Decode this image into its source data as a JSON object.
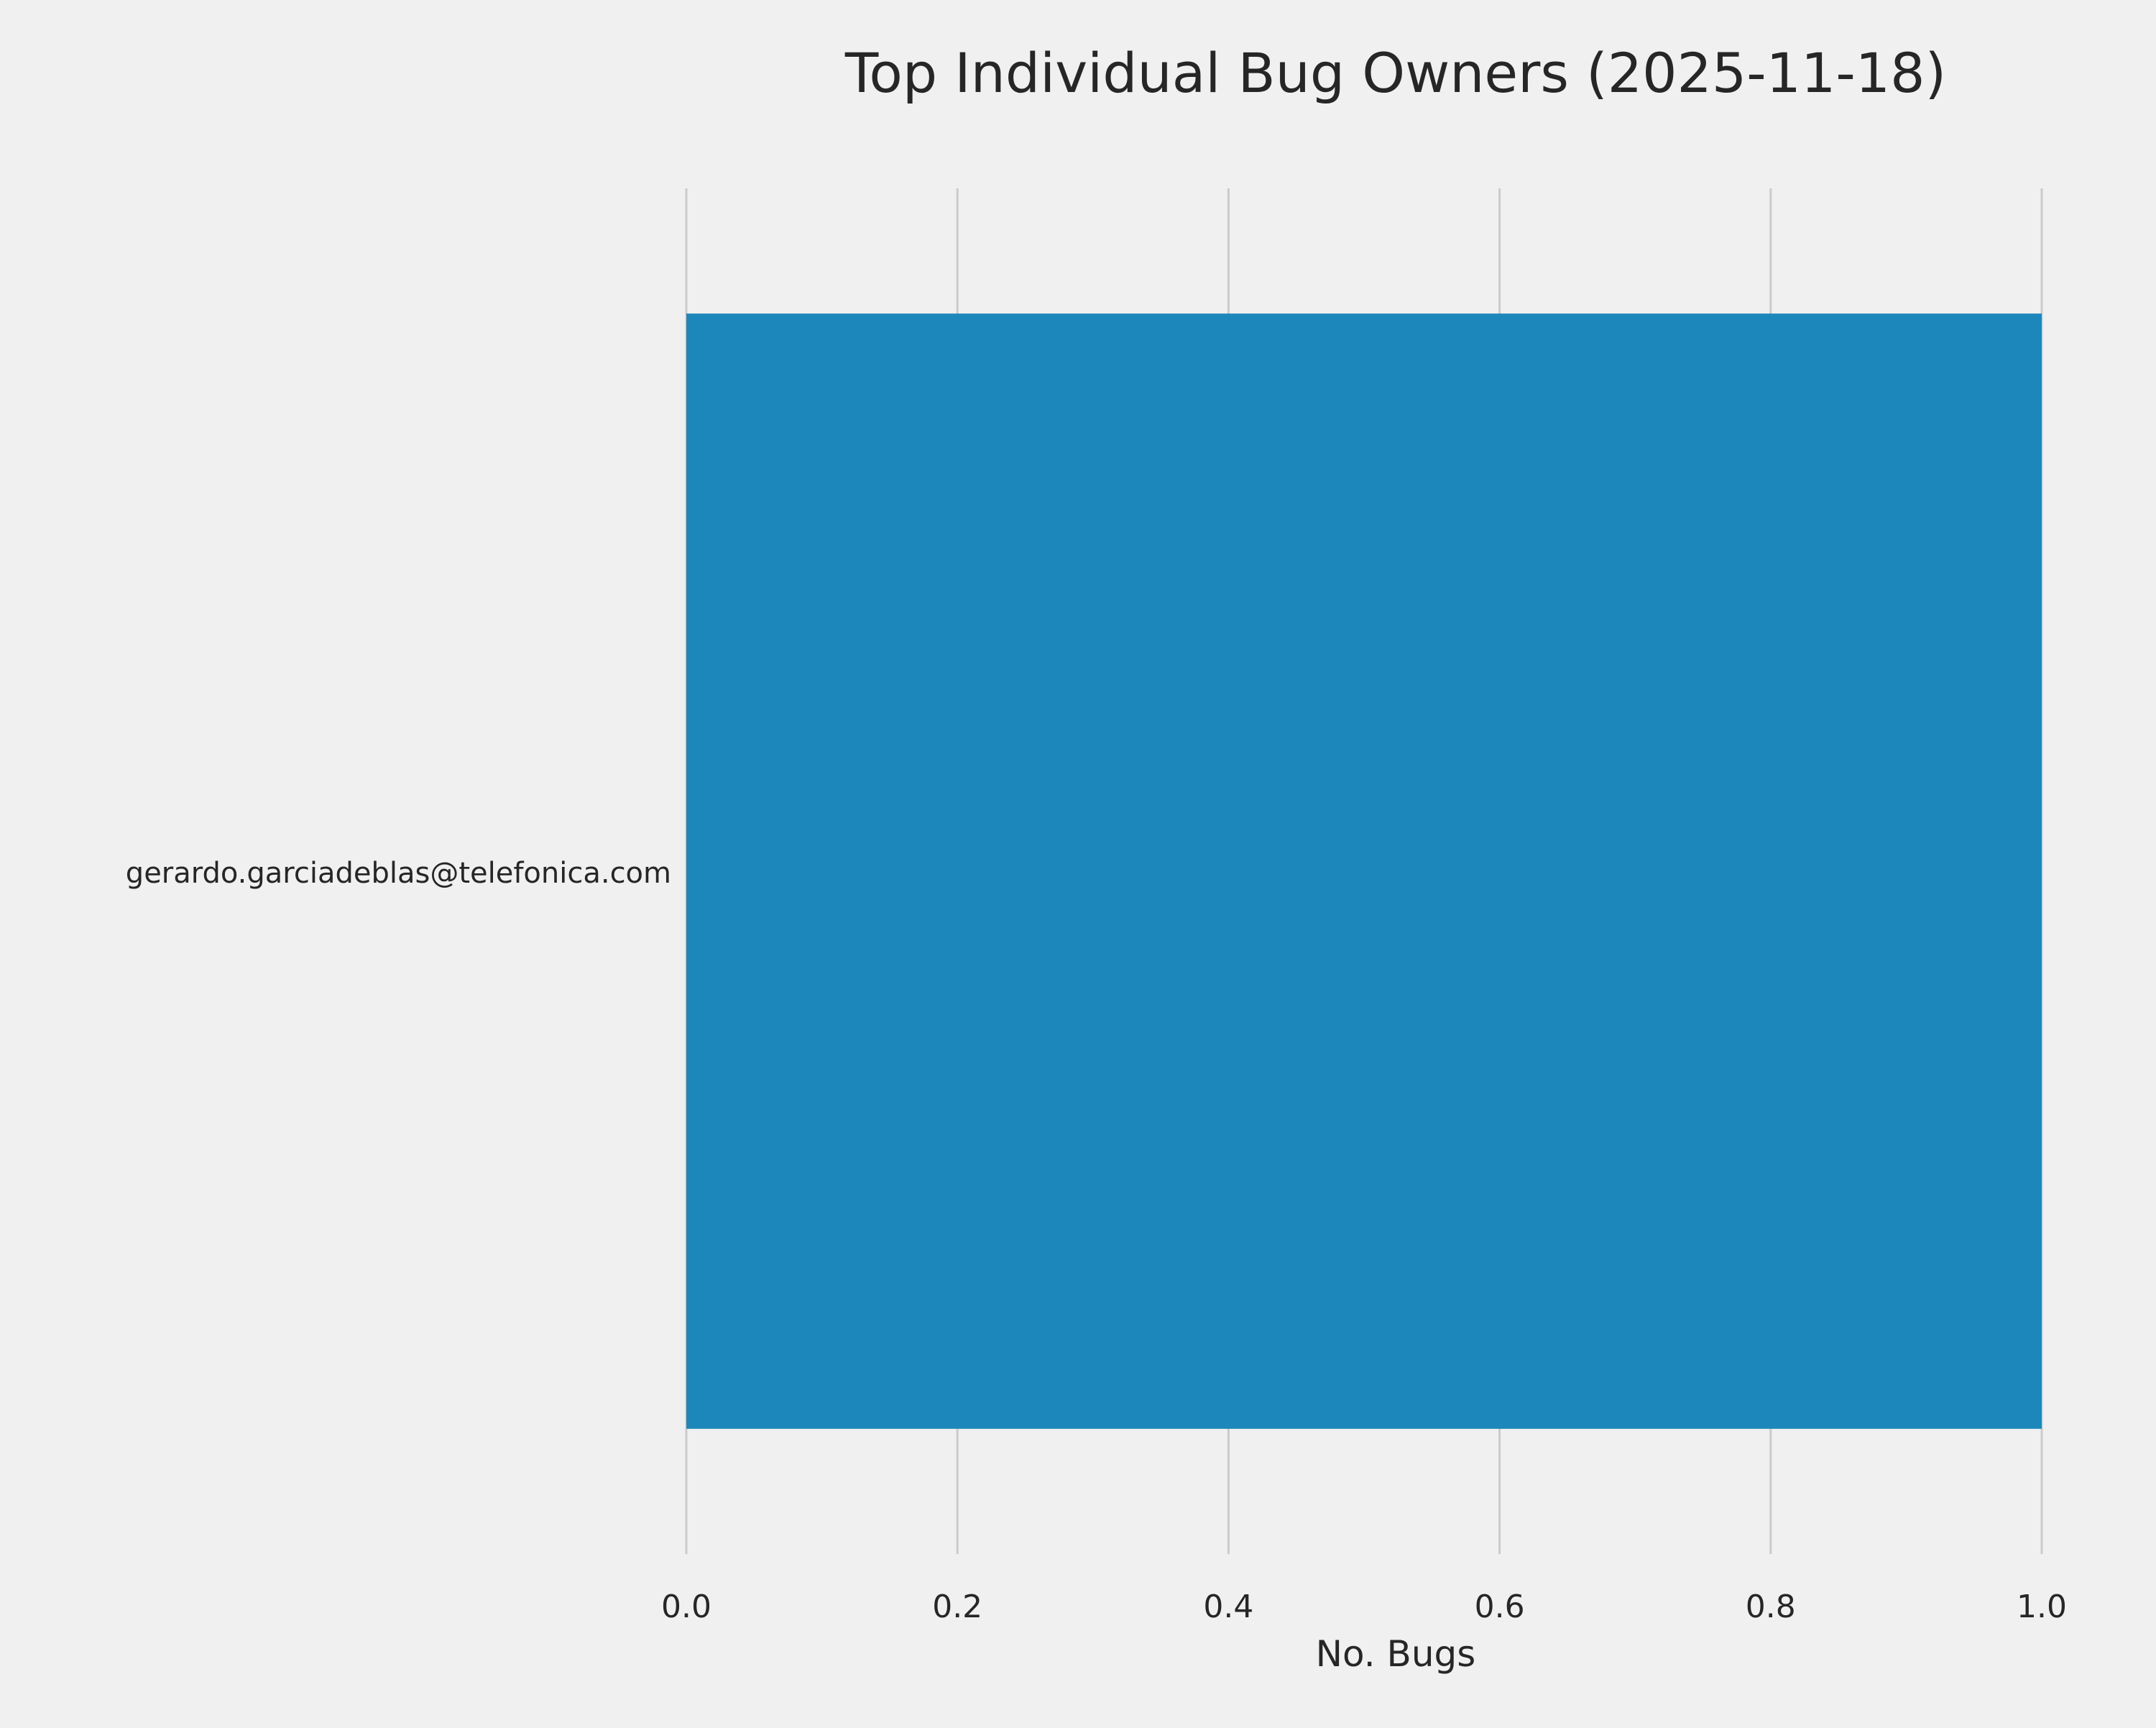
{
  "chart_data": {
    "type": "bar",
    "orientation": "horizontal",
    "title": "Top Individual Bug Owners (2025-11-18)",
    "xlabel": "No. Bugs",
    "ylabel": "",
    "categories": [
      "gerardo.garciadeblas@telefonica.com"
    ],
    "values": [
      1
    ],
    "xlim": [
      0,
      1.0
    ],
    "xticks": [
      "0.0",
      "0.2",
      "0.4",
      "0.6",
      "0.8",
      "1.0"
    ],
    "grid": "vertical",
    "bar_color": "#1c87ba",
    "background": "#f0f0f0"
  }
}
